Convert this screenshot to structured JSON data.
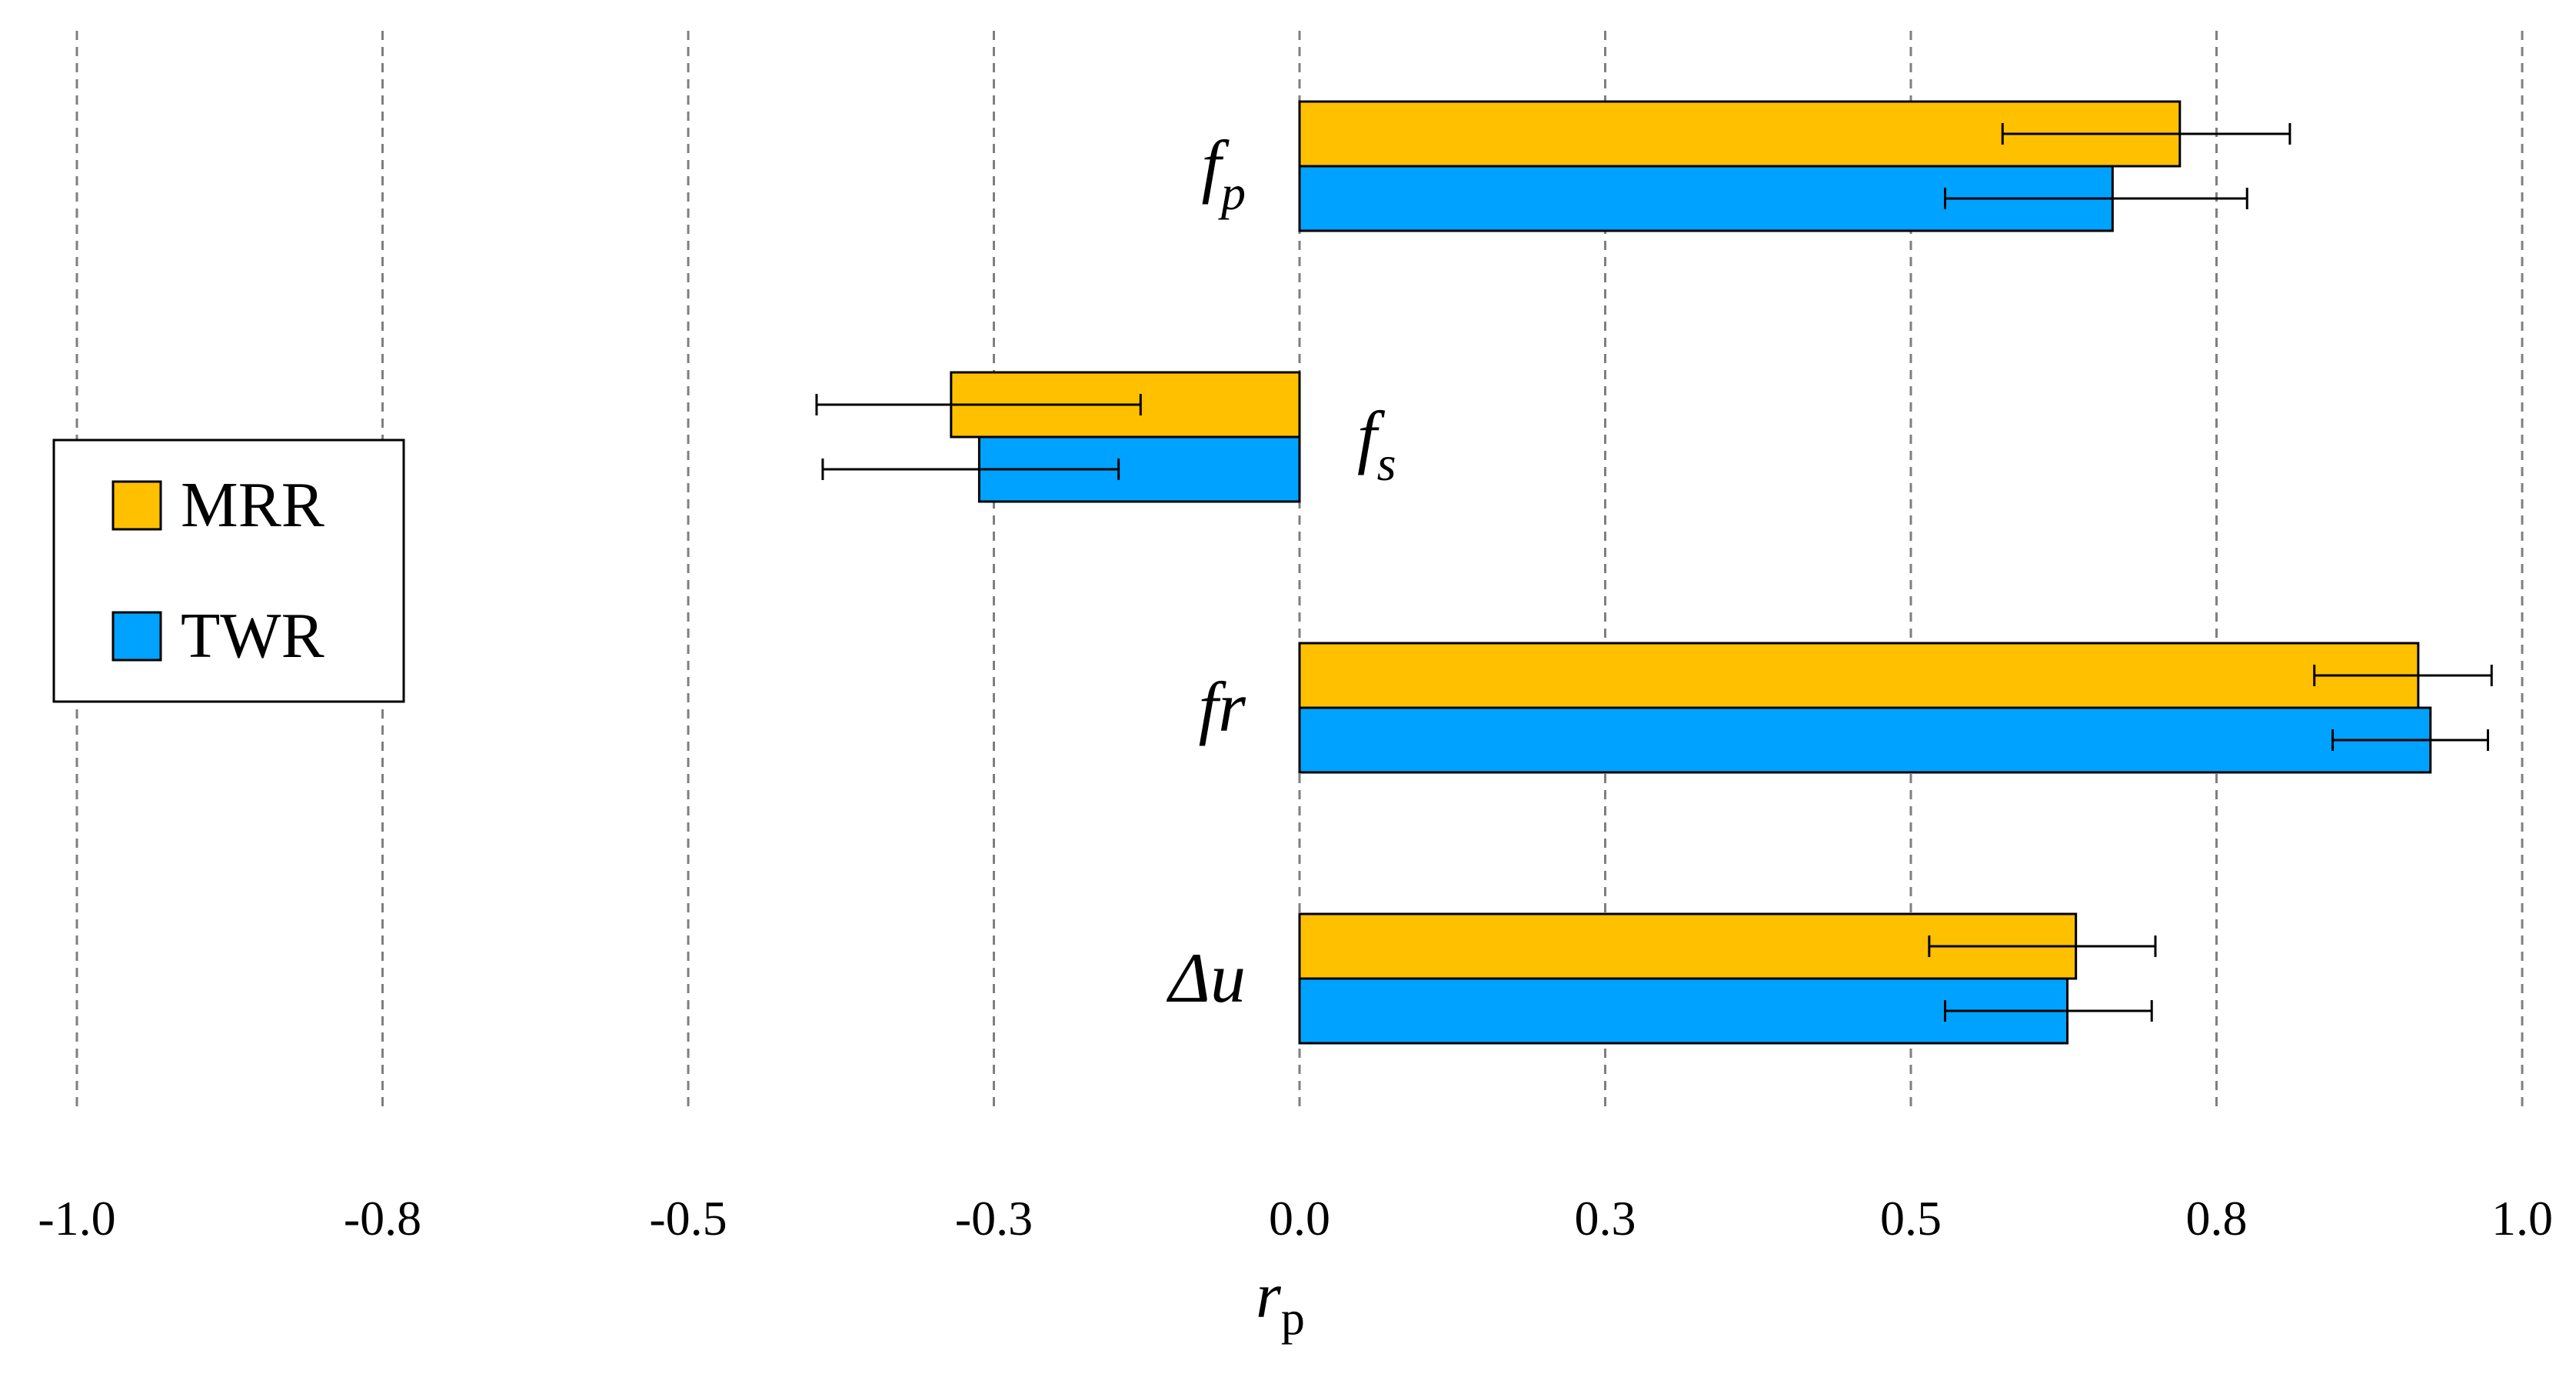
{
  "chart_data": {
    "type": "bar",
    "orientation": "horizontal",
    "title": "",
    "xlabel": "r",
    "xlabel_sub": "p",
    "ylabel": "",
    "xlim": [
      -1.0,
      1.0
    ],
    "xticks": [
      -1.0,
      -0.75,
      -0.5,
      -0.25,
      0.0,
      0.25,
      0.5,
      0.75,
      1.0
    ],
    "xtick_labels": [
      "-1.0",
      "-0.8",
      "-0.5",
      "-0.3",
      "0.0",
      "0.3",
      "0.5",
      "0.8",
      "1.0"
    ],
    "grid": "vertical dashed",
    "legend_position": "left-middle",
    "categories": [
      {
        "main": "f",
        "sub": "p",
        "label_side": "left"
      },
      {
        "main": "f",
        "sub": "s",
        "label_side": "right"
      },
      {
        "main": "fr",
        "sub": "",
        "label_side": "left"
      },
      {
        "main": "Δu",
        "sub": "",
        "label_side": "left"
      }
    ],
    "series": [
      {
        "name": "MRR",
        "color": "#FFC000",
        "values": [
          0.72,
          -0.285,
          0.915,
          0.635
        ],
        "error_low": [
          0.575,
          -0.395,
          0.83,
          0.515
        ],
        "error_high": [
          0.81,
          -0.13,
          0.975,
          0.7
        ]
      },
      {
        "name": "TWR",
        "color": "#00A2FF",
        "values": [
          0.665,
          -0.262,
          0.925,
          0.628
        ],
        "error_low": [
          0.528,
          -0.39,
          0.845,
          0.528
        ],
        "error_high": [
          0.775,
          -0.148,
          0.972,
          0.697
        ]
      }
    ]
  }
}
